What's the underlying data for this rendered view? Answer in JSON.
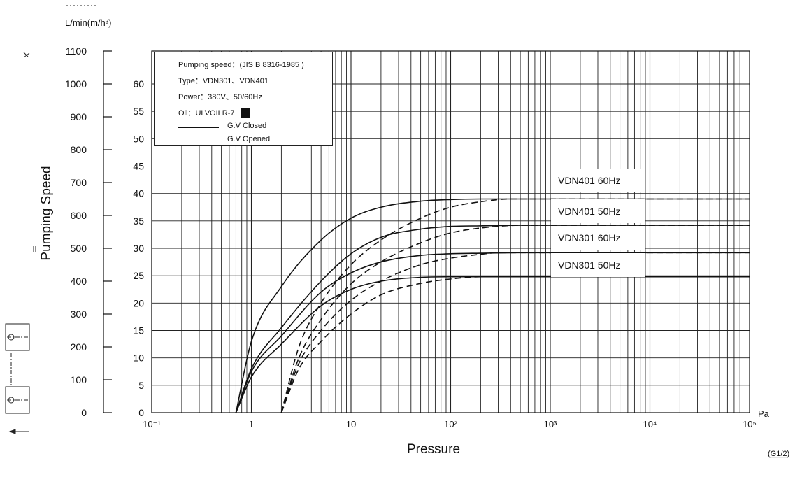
{
  "chart_data": {
    "type": "line",
    "title": "",
    "top_unit_label": "L/min(m/h³)",
    "ylabel": "Pumping Speed",
    "xlabel": "Pressure",
    "x_unit": "Pa",
    "footnote": "(G1/2)",
    "x_scale": "log",
    "xlim": [
      0.1,
      100000
    ],
    "x_ticks": [
      {
        "value": 0.1,
        "label": "10⁻¹"
      },
      {
        "value": 1,
        "label": "1"
      },
      {
        "value": 10,
        "label": "10"
      },
      {
        "value": 100,
        "label": "10²"
      },
      {
        "value": 1000,
        "label": "10³"
      },
      {
        "value": 10000,
        "label": "10⁴"
      },
      {
        "value": 100000,
        "label": "10⁵"
      }
    ],
    "y_left": {
      "unit": "L/min",
      "ylim": [
        0,
        1100
      ],
      "ticks": [
        0,
        100,
        200,
        300,
        400,
        500,
        600,
        700,
        800,
        900,
        1000,
        1100
      ]
    },
    "y_right": {
      "unit": "m³/h",
      "ylim": [
        0,
        66
      ],
      "ticks": [
        0,
        5,
        10,
        15,
        20,
        25,
        30,
        35,
        40,
        45,
        50,
        55,
        60
      ]
    },
    "grid": true,
    "legend": {
      "placement": "top-left",
      "lines": [
        "Pumping speed：(JIS B 8316-1985 )",
        "Type：VDN301、VDN401",
        "Power：380V、50/60Hz",
        "Oil：ULVOILR-7"
      ],
      "styles": [
        {
          "style": "solid",
          "label": "G.V Closed"
        },
        {
          "style": "dashed",
          "label": "G.V Opened"
        }
      ]
    },
    "series": [
      {
        "name": "VDN401 60Hz",
        "style": "solid",
        "x": [
          0.7,
          1,
          2,
          5,
          10,
          20,
          50,
          100,
          200,
          500,
          1000,
          10000,
          100000
        ],
        "y": [
          0,
          13,
          23,
          31.5,
          35.5,
          37.5,
          38.6,
          38.9,
          39,
          39,
          39,
          39,
          39
        ]
      },
      {
        "name": "VDN401 50Hz",
        "style": "solid",
        "x": [
          0.7,
          1,
          2,
          5,
          10,
          20,
          50,
          100,
          200,
          500,
          1000,
          10000,
          100000
        ],
        "y": [
          0,
          8,
          15.5,
          24,
          29,
          32,
          33.5,
          34,
          34.1,
          34.2,
          34.2,
          34.2,
          34.2
        ]
      },
      {
        "name": "VDN301 60Hz",
        "style": "solid",
        "x": [
          0.7,
          1,
          2,
          5,
          10,
          20,
          50,
          100,
          200,
          500,
          1000,
          10000,
          100000
        ],
        "y": [
          0,
          7.5,
          14,
          22,
          25.5,
          27.5,
          28.7,
          29,
          29.1,
          29.2,
          29.2,
          29.2,
          29.2
        ]
      },
      {
        "name": "VDN301 50Hz",
        "style": "solid",
        "x": [
          0.7,
          1,
          2,
          5,
          10,
          20,
          50,
          100,
          200,
          500,
          1000,
          10000,
          100000
        ],
        "y": [
          0,
          6.5,
          12.5,
          19.5,
          22.5,
          24,
          24.7,
          24.8,
          24.8,
          24.8,
          24.8,
          24.8,
          24.8
        ]
      },
      {
        "name": "VDN401 60Hz G.V Opened",
        "style": "dashed",
        "x": [
          2,
          3,
          5,
          10,
          20,
          50,
          100,
          200,
          400,
          1000,
          100000
        ],
        "y": [
          0,
          12,
          20,
          27,
          31.5,
          35.5,
          37.5,
          38.5,
          39,
          39,
          39
        ]
      },
      {
        "name": "VDN401 50Hz G.V Opened",
        "style": "dashed",
        "x": [
          2,
          3,
          5,
          10,
          20,
          50,
          100,
          200,
          500,
          1000,
          100000
        ],
        "y": [
          0,
          10,
          17,
          23.5,
          27.5,
          31,
          32.8,
          33.7,
          34.2,
          34.2,
          34.2
        ]
      },
      {
        "name": "VDN301 60Hz G.V Opened",
        "style": "dashed",
        "x": [
          2,
          3,
          5,
          10,
          20,
          50,
          100,
          200,
          300,
          1000,
          100000
        ],
        "y": [
          0,
          9,
          15,
          20.5,
          24,
          27,
          28.2,
          28.9,
          29.2,
          29.2,
          29.2
        ]
      },
      {
        "name": "VDN301 50Hz G.V Opened",
        "style": "dashed",
        "x": [
          2,
          3,
          5,
          10,
          20,
          50,
          100,
          200,
          1000,
          100000
        ],
        "y": [
          0,
          8,
          13,
          18,
          21.5,
          23.6,
          24.4,
          24.8,
          24.8,
          24.8
        ]
      }
    ],
    "series_labels": [
      "VDN401  60Hz",
      "VDN401  50Hz",
      "VDN301  60Hz",
      "VDN301  50Hz"
    ]
  }
}
